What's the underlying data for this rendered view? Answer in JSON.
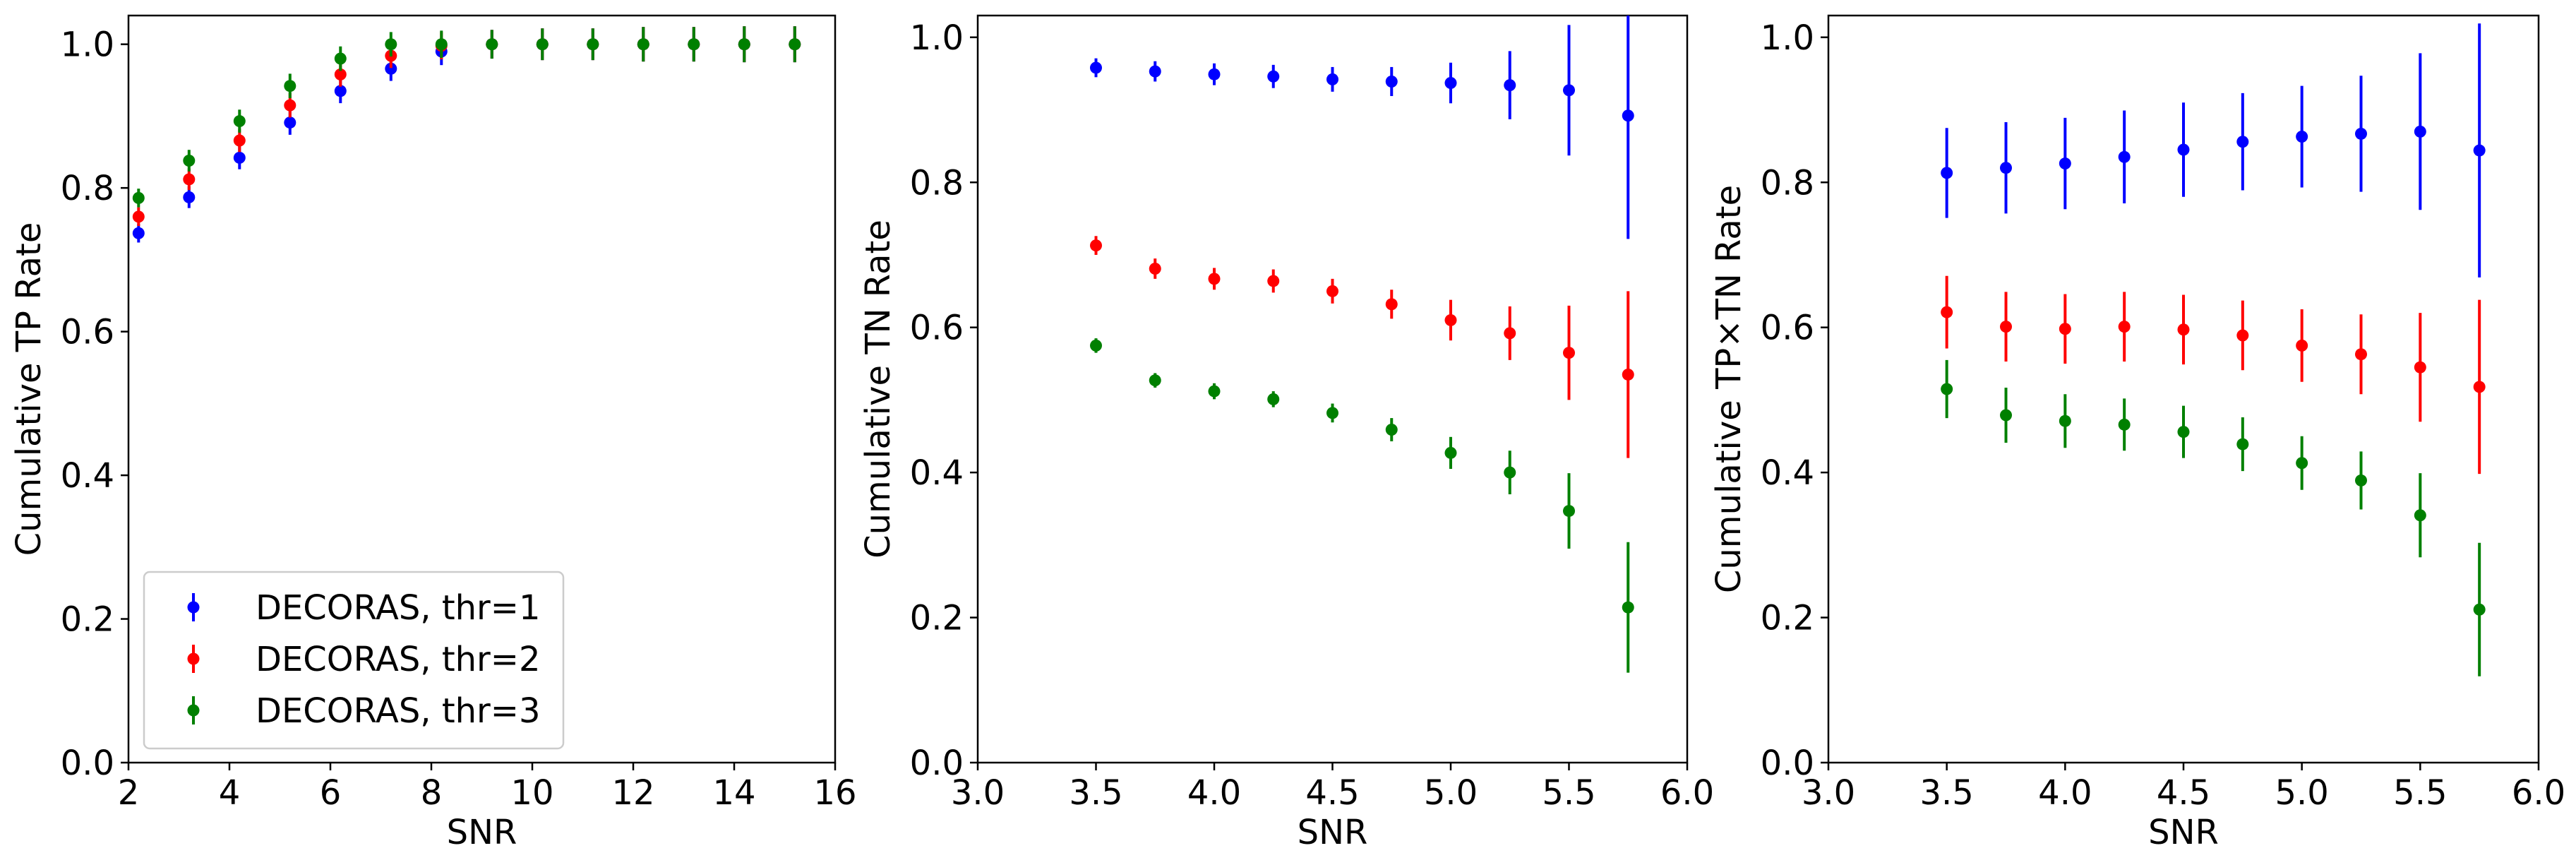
{
  "chart_data": [
    {
      "type": "scatter",
      "xlabel": "SNR",
      "ylabel": "Cumulative TP Rate",
      "xlim": [
        2,
        16
      ],
      "ylim": [
        0.0,
        1.04
      ],
      "xticks": [
        2,
        4,
        6,
        8,
        10,
        12,
        14,
        16
      ],
      "xtick_labels": [
        "2",
        "4",
        "6",
        "8",
        "10",
        "12",
        "14",
        "16"
      ],
      "yticks": [
        0.0,
        0.2,
        0.4,
        0.6,
        0.8,
        1.0
      ],
      "ytick_labels": [
        "0.0",
        "0.2",
        "0.4",
        "0.6",
        "0.8",
        "1.0"
      ],
      "grid": false,
      "legend": {
        "placement": "lower-left"
      },
      "series": [
        {
          "name": "DECORAS, thr=1",
          "color": "#0000ff",
          "x": [
            2.2,
            3.2,
            4.2,
            5.2,
            6.2,
            7.2,
            8.2,
            9.2,
            10.2,
            11.2,
            12.2,
            13.2,
            14.2,
            15.2
          ],
          "y": [
            0.737,
            0.787,
            0.842,
            0.891,
            0.935,
            0.966,
            0.99,
            1.0,
            1.0,
            1.0,
            1.0,
            1.0,
            1.0,
            1.0
          ],
          "err": [
            0.013,
            0.015,
            0.016,
            0.017,
            0.017,
            0.017,
            0.019,
            0.02,
            0.022,
            0.022,
            0.024,
            0.024,
            0.025,
            0.025
          ]
        },
        {
          "name": "DECORAS, thr=2",
          "color": "#ff0000",
          "x": [
            2.2,
            3.2,
            4.2,
            5.2,
            6.2,
            7.2,
            8.2,
            9.2,
            10.2,
            11.2,
            12.2,
            13.2,
            14.2,
            15.2
          ],
          "y": [
            0.76,
            0.812,
            0.866,
            0.915,
            0.958,
            0.984,
            0.998,
            1.0,
            1.0,
            1.0,
            1.0,
            1.0,
            1.0,
            1.0
          ],
          "err": [
            0.013,
            0.015,
            0.016,
            0.017,
            0.017,
            0.017,
            0.019,
            0.02,
            0.022,
            0.022,
            0.024,
            0.024,
            0.025,
            0.025
          ]
        },
        {
          "name": "DECORAS, thr=3",
          "color": "#008000",
          "x": [
            2.2,
            3.2,
            4.2,
            5.2,
            6.2,
            7.2,
            8.2,
            9.2,
            10.2,
            11.2,
            12.2,
            13.2,
            14.2,
            15.2
          ],
          "y": [
            0.786,
            0.838,
            0.893,
            0.942,
            0.98,
            1.0,
            1.0,
            1.0,
            1.0,
            1.0,
            1.0,
            1.0,
            1.0,
            1.0
          ],
          "err": [
            0.013,
            0.015,
            0.016,
            0.017,
            0.017,
            0.017,
            0.019,
            0.02,
            0.022,
            0.022,
            0.024,
            0.024,
            0.025,
            0.025
          ]
        }
      ]
    },
    {
      "type": "scatter",
      "xlabel": "SNR",
      "ylabel": "Cumulative TN Rate",
      "xlim": [
        3.0,
        6.0
      ],
      "ylim": [
        0.0,
        1.03
      ],
      "xticks": [
        3.0,
        3.5,
        4.0,
        4.5,
        5.0,
        5.5,
        6.0
      ],
      "xtick_labels": [
        "3.0",
        "3.5",
        "4.0",
        "4.5",
        "5.0",
        "5.5",
        "6.0"
      ],
      "yticks": [
        0.0,
        0.2,
        0.4,
        0.6,
        0.8,
        1.0
      ],
      "ytick_labels": [
        "0.0",
        "0.2",
        "0.4",
        "0.6",
        "0.8",
        "1.0"
      ],
      "grid": false,
      "series": [
        {
          "color": "#0000ff",
          "x": [
            3.5,
            3.75,
            4.0,
            4.25,
            4.5,
            4.75,
            5.0,
            5.25,
            5.5,
            5.75
          ],
          "y": [
            0.958,
            0.953,
            0.949,
            0.946,
            0.942,
            0.939,
            0.937,
            0.934,
            0.927,
            0.892
          ],
          "err": [
            0.013,
            0.014,
            0.015,
            0.016,
            0.017,
            0.02,
            0.028,
            0.047,
            0.09,
            0.17
          ]
        },
        {
          "color": "#ff0000",
          "x": [
            3.5,
            3.75,
            4.0,
            4.25,
            4.5,
            4.75,
            5.0,
            5.25,
            5.5,
            5.75
          ],
          "y": [
            0.713,
            0.681,
            0.667,
            0.664,
            0.65,
            0.632,
            0.61,
            0.592,
            0.565,
            0.535
          ],
          "err": [
            0.013,
            0.014,
            0.015,
            0.016,
            0.017,
            0.02,
            0.028,
            0.037,
            0.065,
            0.115
          ]
        },
        {
          "color": "#008000",
          "x": [
            3.5,
            3.75,
            4.0,
            4.25,
            4.5,
            4.75,
            5.0,
            5.25,
            5.5,
            5.75
          ],
          "y": [
            0.575,
            0.527,
            0.512,
            0.501,
            0.482,
            0.459,
            0.427,
            0.4,
            0.347,
            0.214
          ],
          "err": [
            0.01,
            0.01,
            0.011,
            0.011,
            0.013,
            0.016,
            0.022,
            0.03,
            0.052,
            0.09
          ]
        }
      ]
    },
    {
      "type": "scatter",
      "xlabel": "SNR",
      "ylabel": "Cumulative TP×TN Rate",
      "xlim": [
        3.0,
        6.0
      ],
      "ylim": [
        0.0,
        1.03
      ],
      "xticks": [
        3.0,
        3.5,
        4.0,
        4.5,
        5.0,
        5.5,
        6.0
      ],
      "xtick_labels": [
        "3.0",
        "3.5",
        "4.0",
        "4.5",
        "5.0",
        "5.5",
        "6.0"
      ],
      "yticks": [
        0.0,
        0.2,
        0.4,
        0.6,
        0.8,
        1.0
      ],
      "ytick_labels": [
        "0.0",
        "0.2",
        "0.4",
        "0.6",
        "0.8",
        "1.0"
      ],
      "grid": false,
      "series": [
        {
          "color": "#0000ff",
          "x": [
            3.5,
            3.75,
            4.0,
            4.25,
            4.5,
            4.75,
            5.0,
            5.25,
            5.5,
            5.75
          ],
          "y": [
            0.813,
            0.82,
            0.826,
            0.835,
            0.845,
            0.856,
            0.863,
            0.867,
            0.87,
            0.844
          ],
          "err": [
            0.062,
            0.063,
            0.063,
            0.064,
            0.065,
            0.067,
            0.07,
            0.08,
            0.108,
            0.175
          ]
        },
        {
          "color": "#ff0000",
          "x": [
            3.5,
            3.75,
            4.0,
            4.25,
            4.5,
            4.75,
            5.0,
            5.25,
            5.5,
            5.75
          ],
          "y": [
            0.621,
            0.601,
            0.598,
            0.601,
            0.597,
            0.589,
            0.575,
            0.563,
            0.545,
            0.518
          ],
          "err": [
            0.05,
            0.048,
            0.048,
            0.048,
            0.048,
            0.048,
            0.05,
            0.055,
            0.075,
            0.12
          ]
        },
        {
          "color": "#008000",
          "x": [
            3.5,
            3.75,
            4.0,
            4.25,
            4.5,
            4.75,
            5.0,
            5.25,
            5.5,
            5.75
          ],
          "y": [
            0.515,
            0.479,
            0.471,
            0.466,
            0.456,
            0.439,
            0.413,
            0.389,
            0.341,
            0.211
          ],
          "err": [
            0.04,
            0.038,
            0.037,
            0.036,
            0.036,
            0.037,
            0.037,
            0.04,
            0.058,
            0.092
          ]
        }
      ]
    }
  ]
}
